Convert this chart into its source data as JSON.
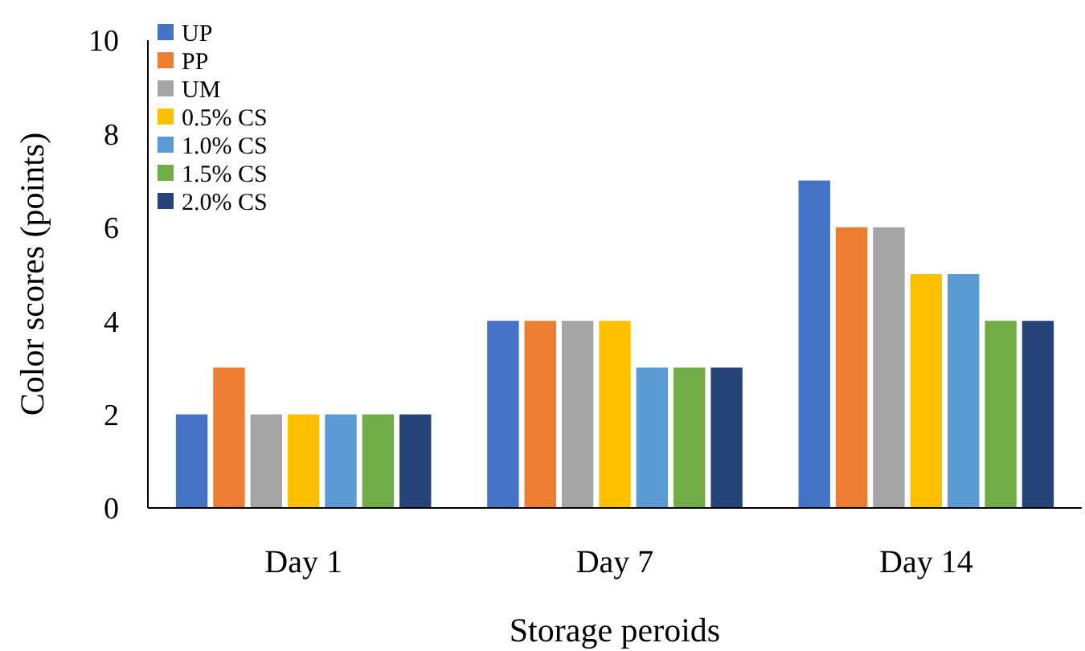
{
  "chart_data": {
    "type": "bar",
    "ylabel": "Color scores (points)",
    "xlabel": "Storage peroids",
    "categories": [
      "Day 1",
      "Day 7",
      "Day 14"
    ],
    "ylim": [
      0,
      10
    ],
    "yticks": [
      0,
      2,
      4,
      6,
      8,
      10
    ],
    "grid": false,
    "legend": "top left",
    "series": [
      {
        "name": "UP",
        "color": "#4472c4",
        "values": [
          2,
          4,
          7
        ]
      },
      {
        "name": "PP",
        "color": "#ed7d31",
        "values": [
          3,
          4,
          6
        ]
      },
      {
        "name": "UM",
        "color": "#a5a5a5",
        "values": [
          2,
          4,
          6
        ]
      },
      {
        "name": "0.5% CS",
        "color": "#ffc000",
        "values": [
          2,
          4,
          5
        ]
      },
      {
        "name": "1.0% CS",
        "color": "#5b9bd5",
        "values": [
          2,
          3,
          5
        ]
      },
      {
        "name": "1.5% CS",
        "color": "#70ad47",
        "values": [
          2,
          3,
          4
        ]
      },
      {
        "name": "2.0% CS",
        "color": "#264478",
        "values": [
          2,
          3,
          4
        ]
      }
    ]
  }
}
